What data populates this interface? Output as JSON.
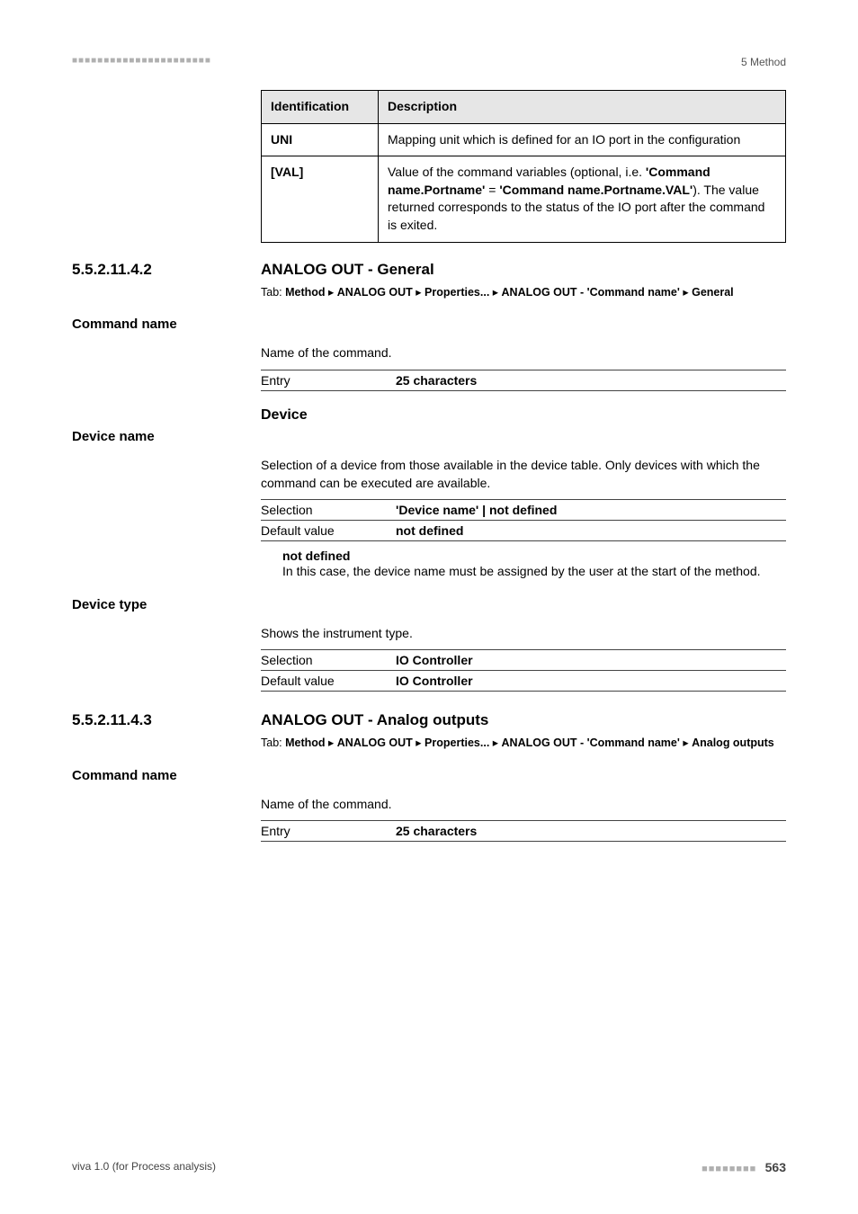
{
  "header": {
    "dots": "■■■■■■■■■■■■■■■■■■■■■■",
    "right": "5 Method"
  },
  "tableTop": {
    "headers": [
      "Identification",
      "Description"
    ],
    "rows": [
      {
        "id": "UNI",
        "desc_plain": "Mapping unit which is defined for an IO port in the configuration"
      },
      {
        "id": "[VAL]",
        "desc_html": "Value of the command variables (optional, i.e. <b>'Command name.Portname'</b> = <b>'Command name.Portname.VAL'</b>). The value returned corresponds to the status of the IO port after the command is exited."
      }
    ]
  },
  "sec1": {
    "num": "5.5.2.11.4.2",
    "title": "ANALOG OUT - General",
    "tab_html": "Tab: <b>Method</b> ▸ <b>ANALOG OUT</b> ▸ <b>Properties...</b> ▸ <b>ANALOG OUT - 'Command name'</b> ▸ <b>General</b>"
  },
  "commandName1": {
    "label": "Command name",
    "text": "Name of the command.",
    "entry_key": "Entry",
    "entry_val": "25 characters"
  },
  "deviceHeading": "Device",
  "deviceName": {
    "label": "Device name",
    "text": "Selection of a device from those available in the device table. Only devices with which the command can be executed are available.",
    "sel_key": "Selection",
    "sel_val": "'Device name' | not defined",
    "def_key": "Default value",
    "def_val": "not defined",
    "nd_title": "not defined",
    "nd_text": "In this case, the device name must be assigned by the user at the start of the method."
  },
  "deviceType": {
    "label": "Device type",
    "text": "Shows the instrument type.",
    "sel_key": "Selection",
    "sel_val": "IO Controller",
    "def_key": "Default value",
    "def_val": "IO Controller"
  },
  "sec2": {
    "num": "5.5.2.11.4.3",
    "title": "ANALOG OUT - Analog outputs",
    "tab_html": "Tab: <b>Method</b> ▸ <b>ANALOG OUT</b> ▸ <b>Properties...</b> ▸ <b>ANALOG OUT - 'Command name'</b> ▸ <b>Analog outputs</b>"
  },
  "commandName2": {
    "label": "Command name",
    "text": "Name of the command.",
    "entry_key": "Entry",
    "entry_val": "25 characters"
  },
  "footer": {
    "left": "viva 1.0 (for Process analysis)",
    "dots": "■■■■■■■■",
    "page": "563"
  }
}
